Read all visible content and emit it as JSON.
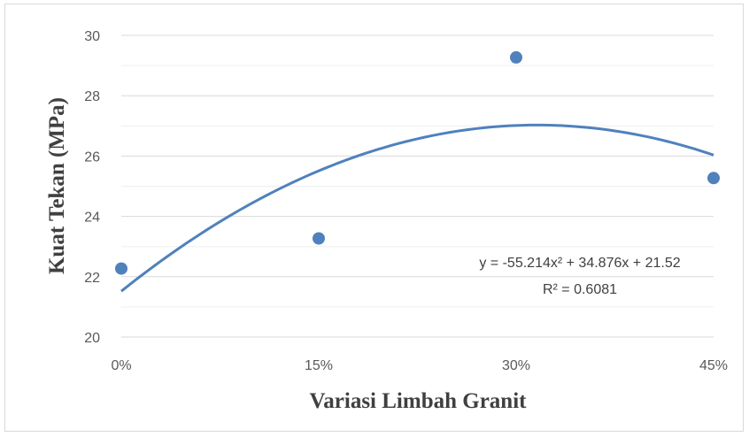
{
  "chart_data": {
    "type": "scatter",
    "title": "",
    "xlabel": "Variasi Limbah Granit",
    "ylabel": "Kuat Tekan (MPa)",
    "x_tick_labels": [
      "0%",
      "15%",
      "30%",
      "45%"
    ],
    "x_tick_values": [
      0,
      0.15,
      0.3,
      0.45
    ],
    "xlim": [
      0,
      0.45
    ],
    "y_tick_labels": [
      "20",
      "22",
      "24",
      "26",
      "28",
      "30"
    ],
    "y_tick_values": [
      20,
      22,
      24,
      26,
      28,
      30
    ],
    "ylim": [
      20,
      30
    ],
    "grid": true,
    "series": [
      {
        "x": [
          0,
          0.15,
          0.3,
          0.45
        ],
        "y": [
          22.27,
          23.27,
          29.27,
          25.27
        ],
        "color": "#4f81bd"
      }
    ],
    "trendline": {
      "type": "polynomial",
      "coefficients": [
        -55.214,
        34.876,
        21.52
      ],
      "color": "#4f81bd"
    },
    "equation_label": "y = -55.214x² + 34.876x + 21.52",
    "r2_label": "R² = 0.6081"
  }
}
